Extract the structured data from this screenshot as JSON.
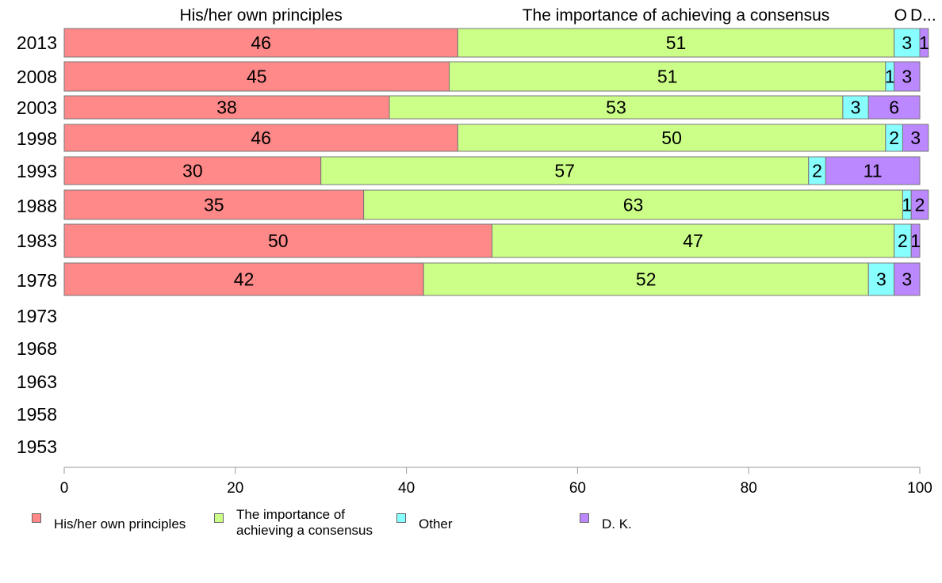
{
  "chart_data": {
    "type": "bar",
    "orientation": "horizontal",
    "stacked": true,
    "categories": [
      "2013",
      "2008",
      "2003",
      "1998",
      "1993",
      "1988",
      "1983",
      "1978",
      "1973",
      "1968",
      "1963",
      "1958",
      "1953"
    ],
    "series": [
      {
        "name": "His/her own principles",
        "color": "#ff8888",
        "values": [
          46,
          45,
          38,
          46,
          30,
          35,
          50,
          42,
          null,
          null,
          null,
          null,
          null
        ]
      },
      {
        "name": "The importance of achieving a consensus",
        "color": "#ccff88",
        "values": [
          51,
          51,
          53,
          50,
          57,
          63,
          47,
          52,
          null,
          null,
          null,
          null,
          null
        ]
      },
      {
        "name": "Other",
        "color": "#88ffff",
        "values": [
          3,
          1,
          3,
          2,
          2,
          1,
          2,
          3,
          null,
          null,
          null,
          null,
          null
        ]
      },
      {
        "name": "D. K.",
        "color": "#bb88ff",
        "values": [
          1,
          3,
          6,
          3,
          11,
          2,
          1,
          3,
          null,
          null,
          null,
          null,
          null
        ]
      }
    ],
    "top_labels": [
      "His/her own principles",
      "The importance of achieving a consensus",
      "Other",
      "D. K."
    ],
    "top_labels_display": [
      "His/her own principles",
      "The importance of achieving a consensus",
      "O",
      "D..."
    ],
    "xlim": [
      0,
      100
    ],
    "xticks": [
      "0",
      "20",
      "40",
      "60",
      "80",
      "100"
    ],
    "legend_labels": [
      "His/her own principles",
      "The importance of\nachieving a consensus",
      "Other",
      "D. K."
    ],
    "legend_position": "bottom",
    "grid": false
  }
}
